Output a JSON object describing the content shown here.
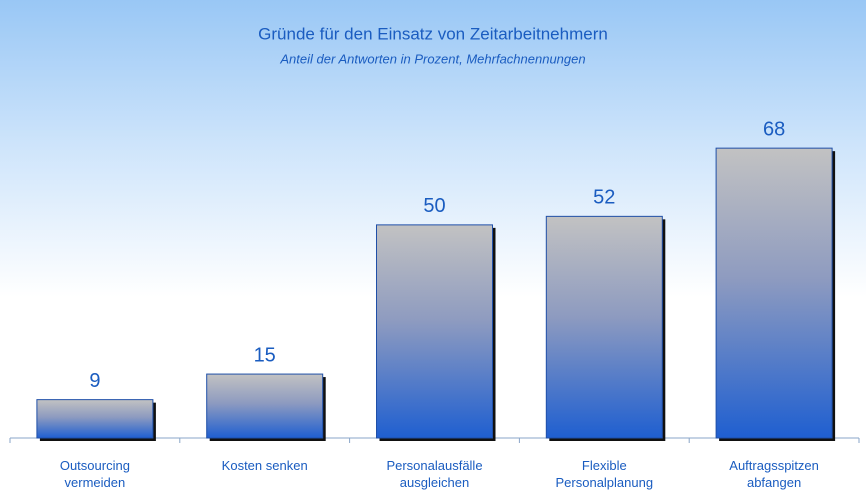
{
  "chart_data": {
    "type": "bar",
    "title": "Gründe für den Einsatz von Zeitarbeitnehmern",
    "subtitle": "Anteil der Antworten in Prozent, Mehrfachnennungen",
    "categories": [
      "Outsourcing vermeiden",
      "Kosten senken",
      "Personalausfälle ausgleichen",
      "Flexible Personalplanung",
      "Auftragsspitzen abfangen"
    ],
    "values": [
      9,
      15,
      50,
      52,
      68
    ],
    "color": "#2a5fc8",
    "ylim": [
      0,
      80
    ]
  }
}
